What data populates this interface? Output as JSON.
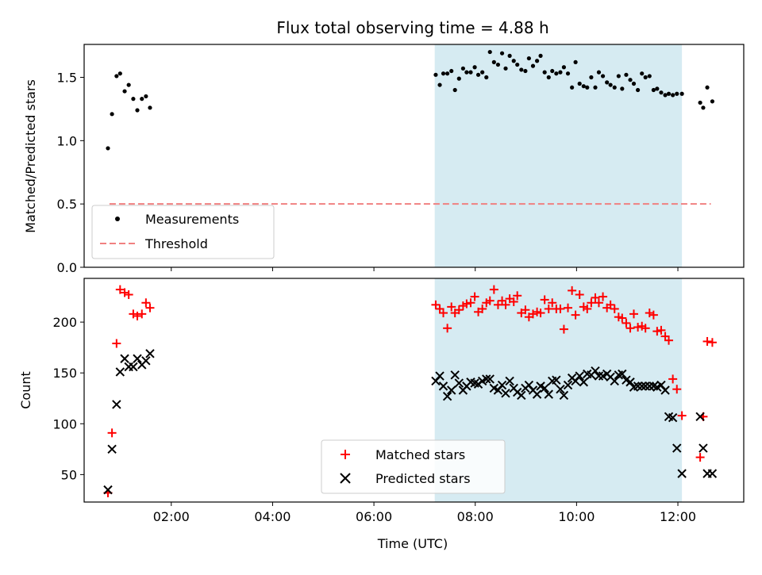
{
  "title": "Flux total observing time = 4.88 h",
  "colors": {
    "measurement": "#000000",
    "threshold": "#f08080",
    "matched": "#ff0000",
    "predicted": "#000000",
    "shade": "#add8e6"
  },
  "chart_data": [
    {
      "type": "scatter",
      "ylabel": "Matched/Predicted stars",
      "ylim": [
        0,
        1.76
      ],
      "xlim": [
        0.28,
        13.3
      ],
      "yticks": [
        0.0,
        0.5,
        1.0,
        1.5
      ],
      "ytick_labels": [
        "0.0",
        "0.5",
        "1.0",
        "1.5"
      ],
      "shaded_region": [
        7.2,
        12.08
      ],
      "threshold": {
        "value": 0.5,
        "x_range": [
          0.78,
          12.65
        ],
        "style": "dashed"
      },
      "legend": [
        "Measurements",
        "Threshold"
      ],
      "legend_loc": "lower-left",
      "series": [
        {
          "name": "Measurements",
          "x": [
            0.75,
            0.83,
            0.92,
            0.99,
            1.08,
            1.16,
            1.25,
            1.33,
            1.42,
            1.5,
            1.58,
            7.22,
            7.3,
            7.37,
            7.45,
            7.53,
            7.6,
            7.68,
            7.76,
            7.83,
            7.91,
            7.99,
            8.06,
            8.14,
            8.22,
            8.29,
            8.37,
            8.45,
            8.53,
            8.6,
            8.68,
            8.76,
            8.83,
            8.91,
            8.99,
            9.06,
            9.14,
            9.22,
            9.29,
            9.37,
            9.45,
            9.52,
            9.6,
            9.68,
            9.75,
            9.83,
            9.91,
            9.98,
            10.06,
            10.14,
            10.21,
            10.29,
            10.37,
            10.44,
            10.52,
            10.6,
            10.67,
            10.75,
            10.83,
            10.9,
            10.98,
            11.06,
            11.13,
            11.21,
            11.29,
            11.36,
            11.44,
            11.52,
            11.59,
            11.67,
            11.75,
            11.82,
            11.9,
            11.98,
            12.08,
            12.44,
            12.5,
            12.58,
            12.68
          ],
          "y": [
            0.94,
            1.21,
            1.51,
            1.53,
            1.39,
            1.44,
            1.33,
            1.24,
            1.33,
            1.35,
            1.26,
            1.52,
            1.44,
            1.53,
            1.53,
            1.55,
            1.4,
            1.49,
            1.57,
            1.54,
            1.54,
            1.58,
            1.52,
            1.54,
            1.5,
            1.7,
            1.62,
            1.6,
            1.69,
            1.57,
            1.67,
            1.63,
            1.6,
            1.56,
            1.55,
            1.65,
            1.59,
            1.63,
            1.67,
            1.54,
            1.5,
            1.55,
            1.53,
            1.54,
            1.58,
            1.53,
            1.42,
            1.62,
            1.45,
            1.43,
            1.42,
            1.5,
            1.42,
            1.54,
            1.51,
            1.46,
            1.44,
            1.42,
            1.51,
            1.41,
            1.52,
            1.48,
            1.45,
            1.4,
            1.53,
            1.5,
            1.51,
            1.4,
            1.41,
            1.38,
            1.36,
            1.37,
            1.36,
            1.37,
            1.37,
            1.3,
            1.26,
            1.42,
            1.31
          ]
        }
      ]
    },
    {
      "type": "scatter",
      "xlabel": "Time (UTC)",
      "ylabel": "Count",
      "ylim": [
        23,
        243
      ],
      "xlim": [
        0.28,
        13.3
      ],
      "yticks": [
        50,
        100,
        150,
        200
      ],
      "ytick_labels": [
        "50",
        "100",
        "150",
        "200"
      ],
      "xticks": [
        2,
        4,
        6,
        8,
        10,
        12
      ],
      "xtick_labels": [
        "02:00",
        "04:00",
        "06:00",
        "08:00",
        "10:00",
        "12:00"
      ],
      "shaded_region": [
        7.2,
        12.08
      ],
      "legend": [
        "Matched stars",
        "Predicted stars"
      ],
      "legend_loc": "lower-center",
      "series": [
        {
          "name": "Matched stars",
          "marker": "+",
          "x": [
            0.75,
            0.83,
            0.92,
            0.99,
            1.08,
            1.16,
            1.25,
            1.33,
            1.42,
            1.5,
            1.58,
            7.22,
            7.3,
            7.37,
            7.45,
            7.53,
            7.6,
            7.68,
            7.76,
            7.83,
            7.91,
            7.99,
            8.06,
            8.14,
            8.22,
            8.29,
            8.37,
            8.45,
            8.53,
            8.6,
            8.68,
            8.76,
            8.83,
            8.91,
            8.99,
            9.06,
            9.14,
            9.22,
            9.29,
            9.37,
            9.45,
            9.52,
            9.6,
            9.68,
            9.75,
            9.83,
            9.91,
            9.98,
            10.06,
            10.14,
            10.21,
            10.29,
            10.37,
            10.44,
            10.52,
            10.6,
            10.67,
            10.75,
            10.83,
            10.9,
            10.98,
            11.06,
            11.13,
            11.21,
            11.29,
            11.36,
            11.44,
            11.52,
            11.59,
            11.67,
            11.75,
            11.82,
            11.9,
            11.98,
            12.08,
            12.44,
            12.5,
            12.58,
            12.68
          ],
          "y": [
            32,
            91,
            179,
            232,
            229,
            227,
            208,
            206,
            208,
            219,
            214,
            217,
            213,
            209,
            194,
            215,
            209,
            212,
            216,
            218,
            219,
            225,
            210,
            213,
            219,
            221,
            232,
            217,
            221,
            217,
            223,
            220,
            226,
            209,
            212,
            205,
            208,
            210,
            209,
            222,
            213,
            219,
            213,
            213,
            193,
            214,
            231,
            207,
            227,
            215,
            213,
            219,
            224,
            219,
            225,
            214,
            217,
            213,
            205,
            204,
            199,
            194,
            208,
            195,
            196,
            194,
            209,
            207,
            191,
            192,
            186,
            182,
            144,
            134,
            108,
            67,
            107,
            181,
            180
          ],
          "note": "approximate readings"
        },
        {
          "name": "Predicted stars",
          "marker": "x",
          "x": [
            0.75,
            0.83,
            0.92,
            0.99,
            1.08,
            1.16,
            1.25,
            1.33,
            1.42,
            1.5,
            1.58,
            7.22,
            7.3,
            7.37,
            7.45,
            7.53,
            7.6,
            7.68,
            7.76,
            7.83,
            7.91,
            7.99,
            8.06,
            8.14,
            8.22,
            8.29,
            8.37,
            8.45,
            8.53,
            8.6,
            8.68,
            8.76,
            8.83,
            8.91,
            8.99,
            9.06,
            9.14,
            9.22,
            9.29,
            9.37,
            9.45,
            9.52,
            9.6,
            9.68,
            9.75,
            9.83,
            9.91,
            9.98,
            10.06,
            10.14,
            10.21,
            10.29,
            10.37,
            10.44,
            10.52,
            10.6,
            10.67,
            10.75,
            10.83,
            10.9,
            10.98,
            11.06,
            11.13,
            11.21,
            11.29,
            11.36,
            11.44,
            11.52,
            11.59,
            11.67,
            11.75,
            11.82,
            11.9,
            11.98,
            12.08,
            12.44,
            12.5,
            12.58,
            12.68
          ],
          "y": [
            35,
            75,
            119,
            151,
            164,
            156,
            156,
            164,
            158,
            162,
            169,
            142,
            147,
            137,
            127,
            133,
            148,
            140,
            133,
            137,
            141,
            140,
            139,
            142,
            144,
            144,
            135,
            133,
            138,
            130,
            142,
            135,
            131,
            128,
            135,
            138,
            133,
            129,
            137,
            135,
            129,
            142,
            143,
            134,
            128,
            138,
            145,
            142,
            147,
            141,
            149,
            148,
            152,
            147,
            147,
            149,
            146,
            142,
            148,
            149,
            143,
            141,
            136,
            137,
            137,
            137,
            137,
            137,
            136,
            138,
            133,
            107,
            106,
            76,
            51,
            107,
            76,
            51,
            51
          ],
          "note": "approximate readings"
        }
      ]
    }
  ]
}
